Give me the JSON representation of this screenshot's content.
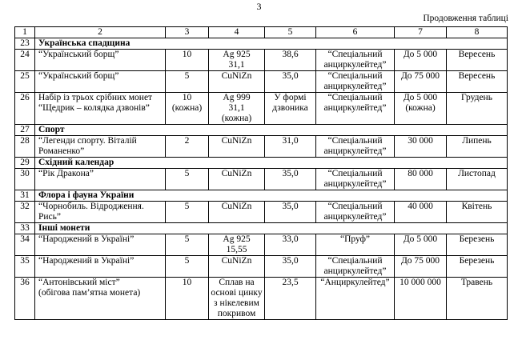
{
  "page": {
    "page_number": "3",
    "continuation_label": "Продовження таблиці"
  },
  "table": {
    "header": [
      "1",
      "2",
      "3",
      "4",
      "5",
      "6",
      "7",
      "8"
    ],
    "rows": [
      {
        "type": "section",
        "num": "23",
        "title": "Українська спадщина"
      },
      {
        "type": "data",
        "num": "24",
        "name": "“Український борщ”",
        "denomination": "10",
        "metal": "Ag 925\n31,1",
        "diameter": "38,6",
        "quality": "“Спеціальний\nанциркулейтед”",
        "mintage": "До 5 000",
        "month": "Вересень"
      },
      {
        "type": "data",
        "num": "25",
        "name": "“Український борщ”",
        "denomination": "5",
        "metal": "CuNiZn",
        "diameter": "35,0",
        "quality": "“Спеціальний\nанциркулейтед”",
        "mintage": "До 75 000",
        "month": "Вересень"
      },
      {
        "type": "data",
        "num": "26",
        "name": "Набір із трьох срібних монет\n“Щедрик – колядка дзвонів”",
        "denomination": "10\n(кожна)",
        "metal": "Ag 999\n31,1\n(кожна)",
        "diameter": "У формі\nдзвоника",
        "quality": "“Спеціальний\nанциркулейтед”",
        "mintage": "До 5 000\n(кожна)",
        "month": "Грудень"
      },
      {
        "type": "section",
        "num": "27",
        "title": "Спорт"
      },
      {
        "type": "data",
        "num": "28",
        "name": "“Легенди спорту. Віталій\nРоманенко”",
        "denomination": "2",
        "metal": "CuNiZn",
        "diameter": "31,0",
        "quality": "“Спеціальний\nанциркулейтед”",
        "mintage": "30 000",
        "month": "Липень"
      },
      {
        "type": "section",
        "num": "29",
        "title": "Східний календар"
      },
      {
        "type": "data",
        "num": "30",
        "name": "“Рік Дракона”",
        "denomination": "5",
        "metal": "CuNiZn",
        "diameter": "35,0",
        "quality": "“Спеціальний\nанциркулейтед”",
        "mintage": "80 000",
        "month": "Листопад"
      },
      {
        "type": "section",
        "num": "31",
        "title": "Флора і фауна України"
      },
      {
        "type": "data",
        "num": "32",
        "name": "“Чорнобиль. Відродження.\nРись”",
        "denomination": "5",
        "metal": "CuNiZn",
        "diameter": "35,0",
        "quality": "“Спеціальний\nанциркулейтед”",
        "mintage": "40 000",
        "month": "Квітень"
      },
      {
        "type": "section",
        "num": "33",
        "title": "Інші монети"
      },
      {
        "type": "data",
        "num": "34",
        "name": "“Народжений в Україні”",
        "denomination": "5",
        "metal": "Ag 925\n15,55",
        "diameter": "33,0",
        "quality": "“Пруф”",
        "mintage": "До 5 000",
        "month": "Березень"
      },
      {
        "type": "data",
        "num": "35",
        "name": "“Народжений в Україні”",
        "denomination": "5",
        "metal": "CuNiZn",
        "diameter": "35,0",
        "quality": "“Спеціальний\nанциркулейтед”",
        "mintage": "До 75 000",
        "month": "Березень"
      },
      {
        "type": "data",
        "num": "36",
        "name": "“Антонівський міст”\n(обігова пам’ятна монета)",
        "denomination": "10",
        "metal": "Сплав на\nоснові цинку\nз нікелевим\nпокривом",
        "diameter": "23,5",
        "quality": "“Анциркулейтед”",
        "mintage": "10 000 000",
        "month": "Травень"
      }
    ]
  }
}
